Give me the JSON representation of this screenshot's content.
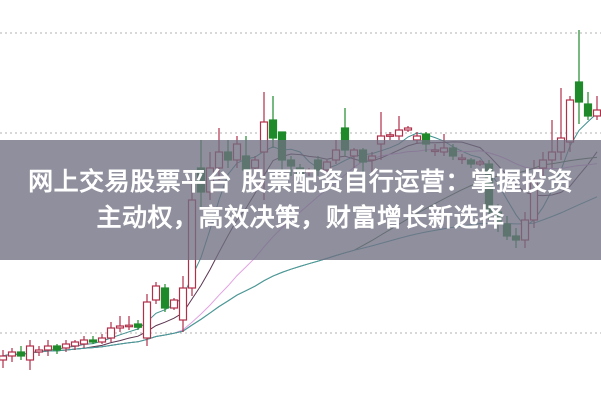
{
  "headline": {
    "line1": "网上交易股票平台 股票配资自行运营：掌握投资",
    "line2": "主动权，高效决策，财富增长新选择"
  },
  "colors": {
    "up": "#b0304a",
    "down": "#1f8a2a",
    "grid": "#b0b0b0",
    "ma": [
      "#3f8f8f",
      "#5a3550",
      "#e2a2e2",
      "#3c6b3c",
      "#4a9ba0"
    ]
  },
  "chart_data": {
    "type": "candlestick",
    "title": "",
    "xlabel": "",
    "ylabel": "",
    "ylim": [
      0,
      100
    ],
    "grid": true,
    "moving_averages": [
      5,
      10,
      20,
      40,
      60
    ],
    "ohlc": [
      [
        10,
        12.5,
        8,
        11
      ],
      [
        11,
        13,
        9.5,
        12
      ],
      [
        12,
        13.5,
        10,
        11
      ],
      [
        10,
        15,
        7.5,
        13.5
      ],
      [
        12,
        13.5,
        11,
        12.5
      ],
      [
        12.5,
        15,
        11,
        13.5
      ],
      [
        13.5,
        14,
        11.5,
        12.5
      ],
      [
        13,
        15,
        12,
        14
      ],
      [
        13.5,
        15,
        12.5,
        14.5
      ],
      [
        14,
        16,
        13,
        15
      ],
      [
        15,
        16,
        14,
        14.5
      ],
      [
        14.5,
        16.5,
        14,
        15.5
      ],
      [
        15.5,
        19.5,
        14.5,
        18
      ],
      [
        18,
        21,
        17,
        18.5
      ],
      [
        18.5,
        21,
        17.5,
        18.7
      ],
      [
        19,
        20,
        17.5,
        18.2
      ],
      [
        15.5,
        26.5,
        13.5,
        24.5
      ],
      [
        25,
        29.5,
        24,
        28.5
      ],
      [
        28,
        29,
        22,
        23
      ],
      [
        23,
        25.5,
        22.5,
        25
      ],
      [
        20,
        31,
        17,
        28
      ],
      [
        28,
        55,
        26,
        50
      ],
      [
        58,
        65,
        48,
        52
      ],
      [
        52,
        62,
        50,
        58
      ],
      [
        58,
        68,
        55,
        62
      ],
      [
        62,
        65,
        58,
        60
      ],
      [
        60,
        66,
        58,
        64
      ],
      [
        61,
        66,
        57,
        57.5
      ],
      [
        58,
        61,
        56,
        60
      ],
      [
        62,
        77,
        50,
        69.5
      ],
      [
        70,
        76,
        63,
        65.5
      ],
      [
        67,
        67,
        55,
        60
      ],
      [
        60,
        61,
        56,
        58.5
      ],
      [
        58,
        59,
        55,
        56.5
      ],
      [
        57,
        58,
        56,
        57.5
      ],
      [
        60,
        61,
        56,
        57.5
      ],
      [
        57.5,
        60,
        57,
        59.5
      ],
      [
        60,
        65,
        59,
        62.5
      ],
      [
        68,
        73,
        61,
        62.5
      ],
      [
        61,
        63,
        58,
        62.5
      ],
      [
        62.5,
        63,
        57,
        59.5
      ],
      [
        60,
        62,
        57,
        61
      ],
      [
        64,
        72,
        60,
        66
      ],
      [
        66,
        67,
        65,
        66.3
      ],
      [
        66,
        71,
        65,
        67.5
      ],
      [
        67.5,
        68.5,
        67,
        68
      ],
      [
        65,
        67,
        64,
        66
      ],
      [
        66.5,
        67,
        62,
        64
      ],
      [
        62.5,
        64,
        61,
        62.5
      ],
      [
        62,
        66.5,
        61,
        63
      ],
      [
        63,
        64,
        60,
        61
      ],
      [
        60.5,
        61.5,
        59,
        60.5
      ],
      [
        60,
        60.5,
        58,
        59
      ],
      [
        59,
        60,
        58.5,
        59.5
      ],
      [
        59,
        60,
        45,
        47
      ],
      [
        47,
        49,
        42,
        44
      ],
      [
        44,
        46,
        40,
        41
      ],
      [
        41,
        43,
        38,
        40
      ],
      [
        40,
        47,
        38,
        45
      ],
      [
        45,
        60,
        43,
        55
      ],
      [
        58,
        62,
        55,
        60
      ],
      [
        60,
        70,
        58,
        62
      ],
      [
        62,
        78,
        60,
        65.5
      ],
      [
        64.5,
        76,
        62,
        75
      ],
      [
        79.5,
        92.5,
        69,
        74.5
      ],
      [
        74,
        77,
        70,
        71
      ],
      [
        71,
        76,
        70,
        72.5
      ]
    ]
  }
}
